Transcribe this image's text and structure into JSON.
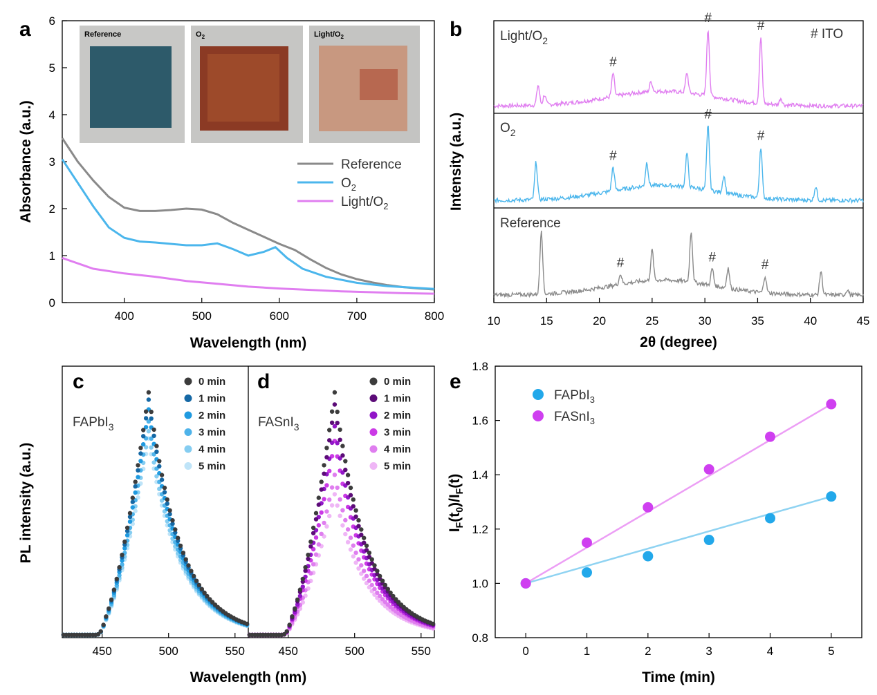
{
  "panels": {
    "a": "a",
    "b": "b",
    "c": "c",
    "d": "d",
    "e": "e"
  },
  "colors": {
    "reference": "#8a8a8a",
    "o2": "#4bb6ec",
    "light_o2": "#e07ef0",
    "fapbi_pts": "#22a8ea",
    "fapbi_line": "#8fd3f2",
    "fasni_pts": "#cf3ff0",
    "fasni_line": "#ec9ef5"
  },
  "chart_data": [
    {
      "id": "a",
      "type": "line",
      "xlabel": "Wavelength (nm)",
      "ylabel": "Absorbance (a.u.)",
      "xlim": [
        320,
        800
      ],
      "ylim": [
        0,
        6
      ],
      "xticks": [
        400,
        500,
        600,
        700,
        800
      ],
      "yticks": [
        0,
        1,
        2,
        3,
        4,
        5,
        6
      ],
      "legend": {
        "position": "right-middle",
        "entries": [
          "Reference",
          "O",
          "Light/O"
        ],
        "subscripts": [
          "",
          "2",
          "2"
        ]
      },
      "photo_labels": [
        "Reference",
        "O",
        "Light/O"
      ],
      "photo_subscripts": [
        "",
        "2",
        "2"
      ],
      "series": [
        {
          "name": "Reference",
          "x": [
            320,
            340,
            360,
            380,
            400,
            420,
            440,
            460,
            480,
            500,
            520,
            540,
            560,
            580,
            600,
            620,
            640,
            660,
            680,
            700,
            720,
            740,
            760,
            780,
            800
          ],
          "y": [
            3.5,
            3.0,
            2.6,
            2.25,
            2.02,
            1.95,
            1.95,
            1.97,
            2.0,
            1.98,
            1.88,
            1.7,
            1.55,
            1.4,
            1.25,
            1.12,
            0.92,
            0.74,
            0.6,
            0.5,
            0.43,
            0.37,
            0.33,
            0.3,
            0.28
          ]
        },
        {
          "name": "O2",
          "x": [
            320,
            340,
            360,
            380,
            400,
            420,
            440,
            460,
            480,
            500,
            520,
            540,
            560,
            580,
            595,
            610,
            630,
            660,
            700,
            740,
            780,
            800
          ],
          "y": [
            3.05,
            2.55,
            2.05,
            1.6,
            1.38,
            1.3,
            1.28,
            1.25,
            1.22,
            1.22,
            1.26,
            1.14,
            1.0,
            1.08,
            1.18,
            0.95,
            0.72,
            0.55,
            0.42,
            0.35,
            0.31,
            0.29
          ]
        },
        {
          "name": "Light/O2",
          "x": [
            320,
            360,
            400,
            440,
            480,
            520,
            560,
            600,
            640,
            680,
            720,
            760,
            800
          ],
          "y": [
            0.95,
            0.72,
            0.62,
            0.55,
            0.46,
            0.4,
            0.34,
            0.3,
            0.27,
            0.24,
            0.22,
            0.2,
            0.19
          ]
        }
      ]
    },
    {
      "id": "b",
      "type": "line",
      "xlabel": "θ (degree)",
      "xlabel_prefix": "2",
      "ylabel": "Intensity (a.u.)",
      "xlim": [
        10,
        45
      ],
      "xticks": [
        10,
        15,
        20,
        25,
        30,
        35,
        40,
        45
      ],
      "ito_legend": "#  ITO",
      "marker": "#",
      "series": [
        {
          "name": "Light/O",
          "subscript": "2",
          "peaks": [
            {
              "x": 14.2,
              "h": 0.3
            },
            {
              "x": 14.8,
              "h": 0.15
            },
            {
              "x": 21.3,
              "h": 0.35
            },
            {
              "x": 24.9,
              "h": 0.15
            },
            {
              "x": 28.3,
              "h": 0.3
            },
            {
              "x": 30.3,
              "h": 1.0
            },
            {
              "x": 35.3,
              "h": 1.0
            },
            {
              "x": 37.2,
              "h": 0.1
            }
          ],
          "hash_at": [
            21.3,
            30.3,
            35.3
          ]
        },
        {
          "name": "O",
          "subscript": "2",
          "peaks": [
            {
              "x": 14.0,
              "h": 0.55
            },
            {
              "x": 21.3,
              "h": 0.35
            },
            {
              "x": 24.5,
              "h": 0.35
            },
            {
              "x": 28.3,
              "h": 0.5
            },
            {
              "x": 30.3,
              "h": 0.95
            },
            {
              "x": 31.8,
              "h": 0.25
            },
            {
              "x": 35.3,
              "h": 0.75
            },
            {
              "x": 40.5,
              "h": 0.2
            }
          ],
          "hash_at": [
            21.3,
            30.3,
            35.3
          ]
        },
        {
          "name": "Reference",
          "subscript": "",
          "peaks": [
            {
              "x": 14.5,
              "h": 0.95
            },
            {
              "x": 22.0,
              "h": 0.15
            },
            {
              "x": 25.0,
              "h": 0.45
            },
            {
              "x": 28.7,
              "h": 0.75
            },
            {
              "x": 30.7,
              "h": 0.25
            },
            {
              "x": 32.2,
              "h": 0.3
            },
            {
              "x": 35.7,
              "h": 0.25
            },
            {
              "x": 41.0,
              "h": 0.35
            },
            {
              "x": 43.5,
              "h": 0.08
            }
          ],
          "hash_at": [
            22.0,
            30.7,
            35.7
          ]
        }
      ]
    },
    {
      "id": "c",
      "type": "scatter",
      "xlabel": "Wavelength (nm)",
      "ylabel": "PL intensity (a.u.)",
      "xlim": [
        420,
        560
      ],
      "xticks": [
        450,
        500,
        550
      ],
      "sample": "FAPbI",
      "sample_sub": "3",
      "times": [
        "0 min",
        "1 min",
        "2 min",
        "3 min",
        "4 min",
        "5 min"
      ],
      "series_colors": [
        "#3c3c3c",
        "#1568a5",
        "#1f9ae0",
        "#4eb3ea",
        "#85cdf1",
        "#bfe4f8"
      ],
      "peak_values": [
        1.0,
        0.97,
        0.93,
        0.88,
        0.84,
        0.81
      ]
    },
    {
      "id": "d",
      "type": "scatter",
      "sample": "FASnI",
      "sample_sub": "3",
      "xlim": [
        420,
        560
      ],
      "xticks": [
        450,
        500,
        550
      ],
      "times": [
        "0 min",
        "1 min",
        "2 min",
        "3 min",
        "4 min",
        "5 min"
      ],
      "series_colors": [
        "#3c3c3c",
        "#5c0c78",
        "#9216c8",
        "#cb3ae6",
        "#df7eef",
        "#efb6f6"
      ],
      "peak_values": [
        1.0,
        0.95,
        0.86,
        0.8,
        0.66,
        0.58
      ]
    },
    {
      "id": "e",
      "type": "scatter",
      "xlabel": "Time (min)",
      "ylabel_main": "I",
      "ylabel_sub1": "F",
      "ylabel_mid": "(t",
      "ylabel_sub2": "0",
      "ylabel_mid2": ")/I",
      "ylabel_sub3": "F",
      "ylabel_end": "(t)",
      "xlim": [
        -0.5,
        5.5
      ],
      "ylim": [
        0.8,
        1.8
      ],
      "xticks": [
        0,
        1,
        2,
        3,
        4,
        5
      ],
      "yticks": [
        "0.8",
        "1.0",
        "1.2",
        "1.4",
        "1.6",
        "1.8"
      ],
      "legend": {
        "position": "top-left",
        "entries": [
          "FAPbI",
          "FASnI"
        ],
        "subscripts": [
          "3",
          "3"
        ]
      },
      "series": [
        {
          "name": "FAPbI3",
          "x": [
            0,
            1,
            2,
            3,
            4,
            5
          ],
          "y": [
            1.0,
            1.04,
            1.1,
            1.16,
            1.24,
            1.32
          ],
          "fit": [
            1.0,
            1.32
          ]
        },
        {
          "name": "FASnI3",
          "x": [
            0,
            1,
            2,
            3,
            4,
            5
          ],
          "y": [
            1.0,
            1.15,
            1.28,
            1.42,
            1.54,
            1.66
          ],
          "fit": [
            1.0,
            1.66
          ]
        }
      ]
    }
  ]
}
